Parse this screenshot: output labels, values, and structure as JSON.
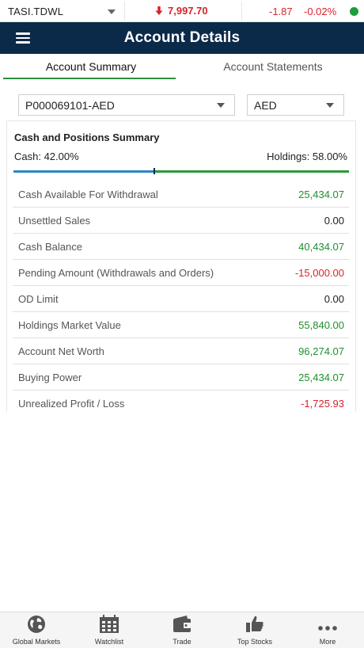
{
  "ticker": {
    "symbol": "TASI.TDWL",
    "price": "7,997.70",
    "change": "-1.87",
    "change_pct": "-0.02%",
    "direction": "down",
    "status_color": "#1a9e3a"
  },
  "header": {
    "title": "Account Details",
    "menu_icon": "hamburger-icon"
  },
  "tabs": [
    {
      "label": "Account Summary",
      "active": true
    },
    {
      "label": "Account Statements",
      "active": false
    }
  ],
  "account_select": {
    "value": "P000069101-AED"
  },
  "currency_select": {
    "value": "AED"
  },
  "summary": {
    "title": "Cash and Positions Summary",
    "cash_label": "Cash: 42.00%",
    "holdings_label": "Holdings: 58.00%",
    "cash_fraction": 0.42,
    "rows": [
      {
        "label": "Cash Available For Withdrawal",
        "value": "25,434.07",
        "tone": "pos"
      },
      {
        "label": "Unsettled Sales",
        "value": "0.00",
        "tone": "neutral"
      },
      {
        "label": "Cash Balance",
        "value": "40,434.07",
        "tone": "pos"
      },
      {
        "label": "Pending Amount (Withdrawals and Orders)",
        "value": "-15,000.00",
        "tone": "neg"
      },
      {
        "label": "OD Limit",
        "value": "0.00",
        "tone": "neutral"
      },
      {
        "label": "Holdings Market Value",
        "value": "55,840.00",
        "tone": "pos"
      },
      {
        "label": "Account Net Worth",
        "value": "96,274.07",
        "tone": "pos"
      },
      {
        "label": "Buying Power",
        "value": "25,434.07",
        "tone": "pos"
      },
      {
        "label": "Unrealized Profit / Loss",
        "value": "-1,725.93",
        "tone": "neg"
      }
    ]
  },
  "bottom_nav": [
    {
      "label": "Global Markets",
      "icon": "globe-icon"
    },
    {
      "label": "Watchlist",
      "icon": "calendar-grid-icon"
    },
    {
      "label": "Trade",
      "icon": "wallet-icon"
    },
    {
      "label": "Top Stocks",
      "icon": "thumbs-up-icon"
    },
    {
      "label": "More",
      "icon": "more-dots-icon"
    }
  ],
  "colors": {
    "header_bg": "#0b2a4a",
    "positive": "#1e8f2e",
    "negative": "#d9232a",
    "cash_bar": "#2a86c7",
    "holdings_bar": "#2a9a3a"
  }
}
